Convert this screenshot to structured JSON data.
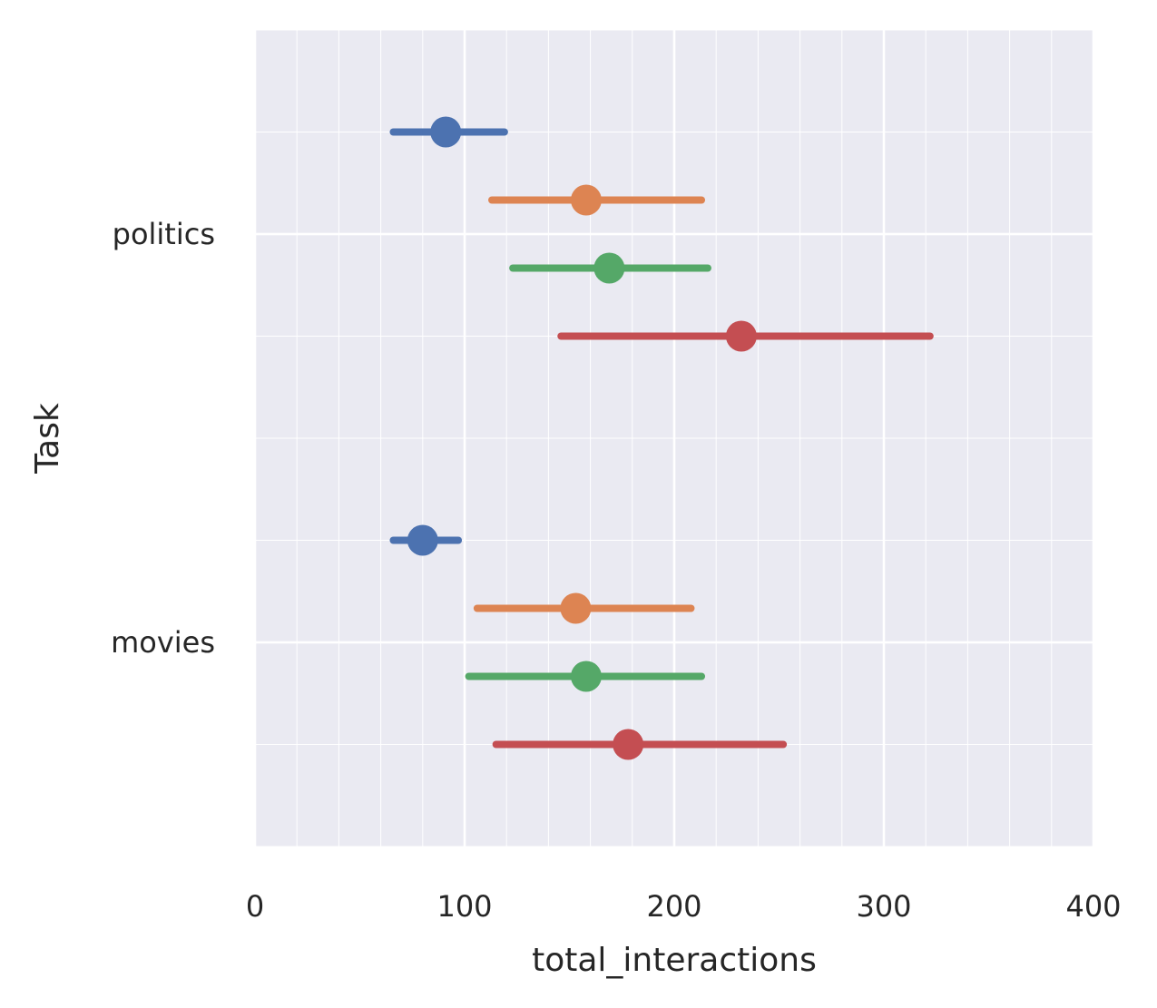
{
  "chart_data": {
    "type": "pointplot",
    "orientation": "horizontal",
    "title": "",
    "xlabel": "total_interactions",
    "ylabel": "Task",
    "xlim": [
      0,
      400
    ],
    "xticks": [
      0,
      100,
      200,
      300,
      400
    ],
    "xtick_labels": [
      "0",
      "100",
      "200",
      "300",
      "400"
    ],
    "categories": [
      "politics",
      "movies"
    ],
    "grid": true,
    "minor_grid": true,
    "legend": null,
    "series": [
      {
        "color": "#4c72b0",
        "means": [
          91,
          80
        ],
        "ci_low": [
          66,
          66
        ],
        "ci_high": [
          119,
          97
        ]
      },
      {
        "color": "#dd8452",
        "means": [
          158,
          153
        ],
        "ci_low": [
          113,
          106
        ],
        "ci_high": [
          213,
          208
        ]
      },
      {
        "color": "#55a868",
        "means": [
          169,
          158
        ],
        "ci_low": [
          123,
          102
        ],
        "ci_high": [
          216,
          213
        ]
      },
      {
        "color": "#c44e52",
        "means": [
          232,
          178
        ],
        "ci_low": [
          146,
          115
        ],
        "ci_high": [
          322,
          252
        ]
      }
    ]
  }
}
